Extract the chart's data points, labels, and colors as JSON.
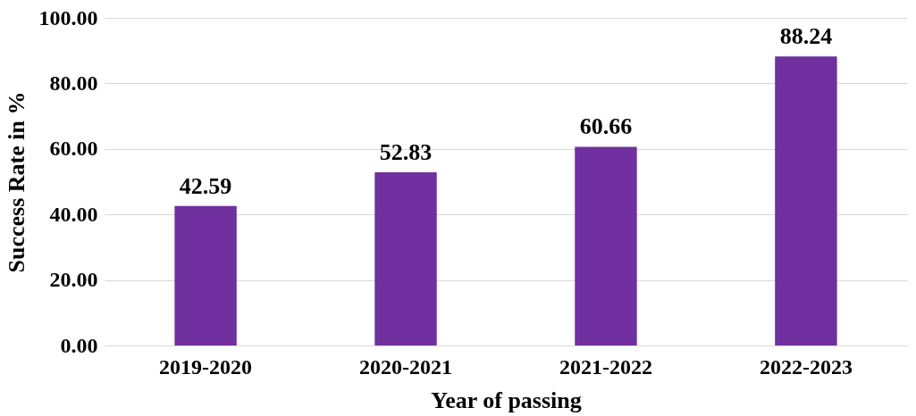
{
  "chart_data": {
    "type": "bar",
    "xlabel": "Year of passing",
    "ylabel": "Success Rate in %",
    "categories": [
      "2019-2020",
      "2020-2021",
      "2021-2022",
      "2022-2023"
    ],
    "values": [
      42.59,
      52.83,
      60.66,
      88.24
    ],
    "color": "#7030a0",
    "ylim": [
      0,
      100
    ],
    "yticks": [
      {
        "value": 0,
        "label": "0.00"
      },
      {
        "value": 20,
        "label": "20.00"
      },
      {
        "value": 40,
        "label": "40.00"
      },
      {
        "value": 60,
        "label": "60.00"
      },
      {
        "value": 80,
        "label": "80.00"
      },
      {
        "value": 100,
        "label": "100.00"
      }
    ],
    "grid": "y",
    "data_labels": true
  }
}
